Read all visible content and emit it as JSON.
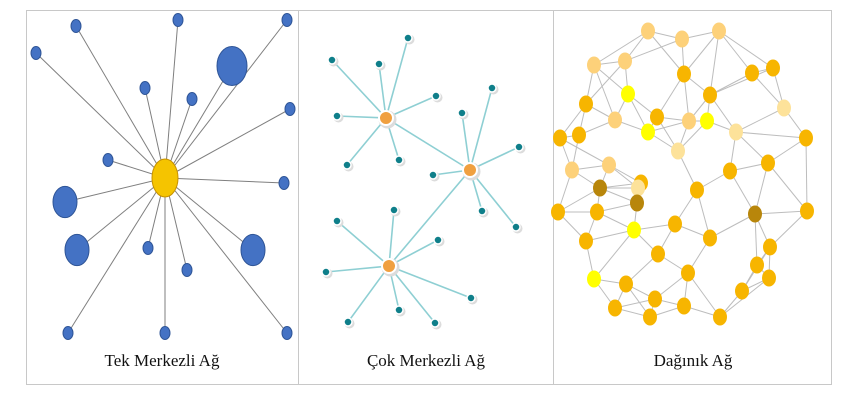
{
  "panels": [
    {
      "caption": "Tek Merkezli Ağ"
    },
    {
      "caption": "Çok Merkezli Ağ"
    },
    {
      "caption": "Dağınık Ağ"
    }
  ],
  "colors": {
    "centralized_hub": "#f5c400",
    "centralized_leaf": "#4472c4",
    "decentralized_hub": "#f0a040",
    "decentralized_leaf": "#0f7f8a",
    "decentralized_edge": "#8ecfd3",
    "distributed_node": "#f5b800",
    "distributed_edge": "#bdbdbd"
  }
}
